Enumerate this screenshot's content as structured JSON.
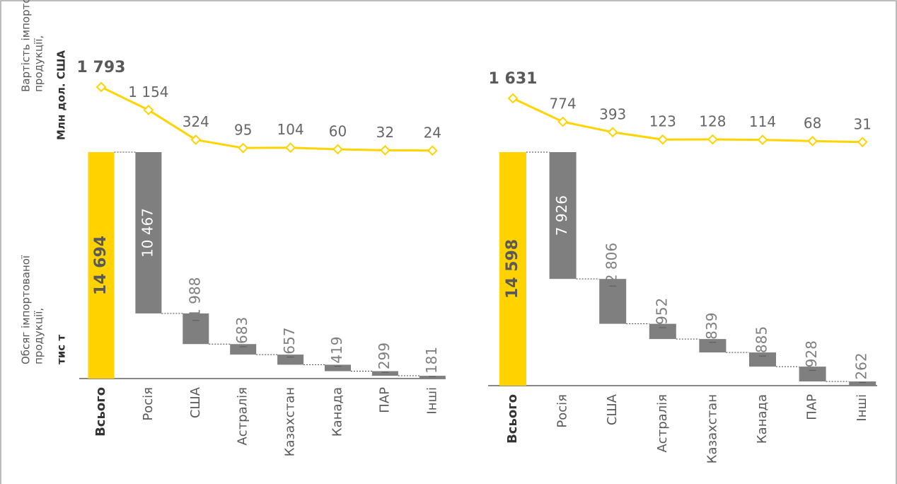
{
  "axis_labels": {
    "line_label": [
      "Вартість імпортованої",
      "продукції,"
    ],
    "line_unit": "Млн дол. США",
    "bar_label": [
      "Обсяг імпортованої",
      "продукції,"
    ],
    "bar_unit": "тис т"
  },
  "chart_data": [
    {
      "type": "waterfall",
      "categories": [
        "Всього",
        "Росія",
        "США",
        "Астралія",
        "Казахстан",
        "Канада",
        "ПАР",
        "Інші"
      ],
      "values": [
        14694,
        10467,
        1988,
        683,
        657,
        419,
        299,
        181
      ],
      "value_labels": [
        "14 694",
        "10 467",
        "1 988",
        "683",
        "657",
        "419",
        "299",
        "181"
      ],
      "total_color": "#ffd200",
      "step_color": "#7f7f7f",
      "line": {
        "values": [
          1793,
          1154,
          324,
          95,
          104,
          60,
          32,
          24
        ],
        "value_labels": [
          "1 793",
          "1 154",
          "324",
          "95",
          "104",
          "60",
          "32",
          "24"
        ],
        "color": "#ffd400"
      }
    },
    {
      "type": "waterfall",
      "categories": [
        "Всього",
        "Росія",
        "США",
        "Астралія",
        "Казахстан",
        "Канада",
        "ПАР",
        "Інші"
      ],
      "values": [
        14598,
        7926,
        2806,
        952,
        839,
        885,
        928,
        262
      ],
      "value_labels": [
        "14 598",
        "7 926",
        "2 806",
        "952",
        "839",
        "885",
        "928",
        "262"
      ],
      "total_color": "#ffd200",
      "step_color": "#7f7f7f",
      "line": {
        "values": [
          1631,
          774,
          393,
          123,
          128,
          114,
          68,
          31
        ],
        "value_labels": [
          "1 631",
          "774",
          "393",
          "123",
          "128",
          "114",
          "68",
          "31"
        ],
        "color": "#ffd400"
      }
    }
  ]
}
